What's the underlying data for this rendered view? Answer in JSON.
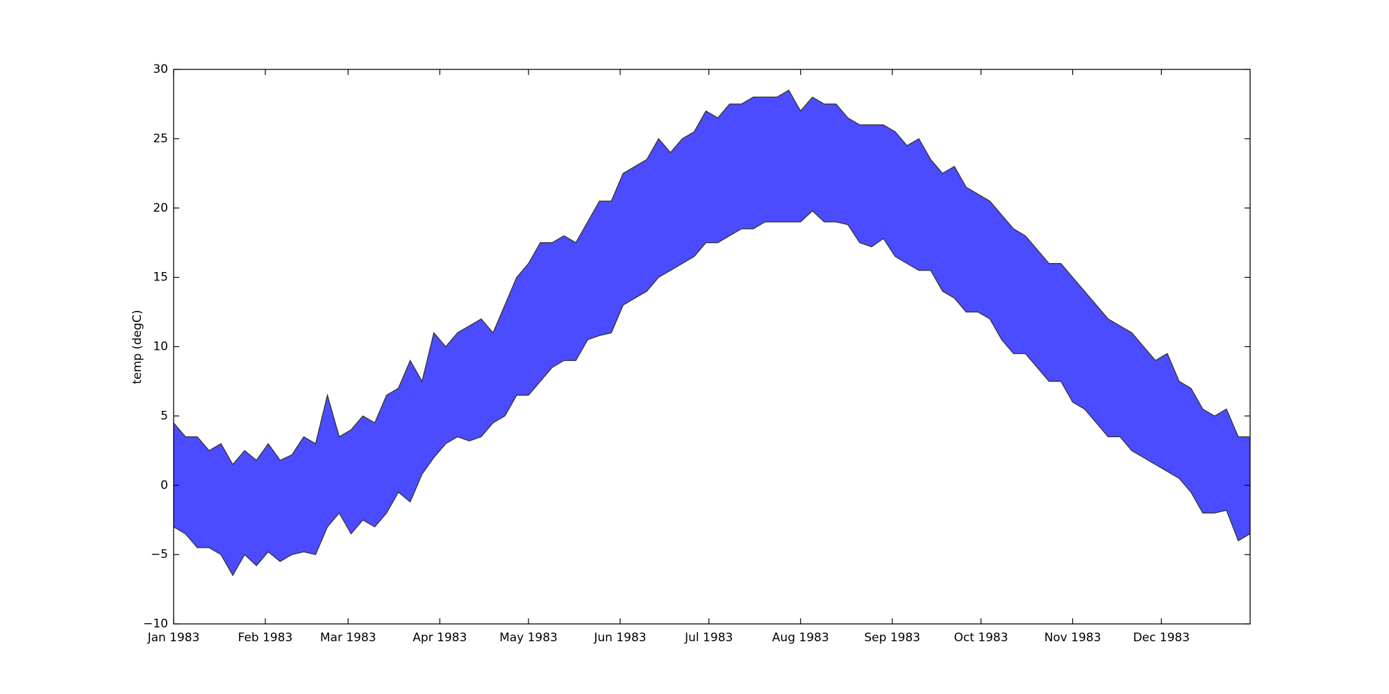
{
  "chart_data": {
    "type": "area",
    "y_label": "temp (degC)",
    "color": "#4b4bff",
    "x": [
      0,
      4,
      8,
      12,
      16,
      20,
      24,
      28,
      32,
      36,
      40,
      44,
      48,
      52,
      56,
      60,
      64,
      68,
      72,
      76,
      80,
      84,
      88,
      92,
      96,
      100,
      104,
      108,
      112,
      116,
      120,
      124,
      128,
      132,
      136,
      140,
      144,
      148,
      152,
      156,
      160,
      164,
      168,
      172,
      176,
      180,
      184,
      188,
      192,
      196,
      200,
      204,
      208,
      212,
      216,
      220,
      224,
      228,
      232,
      236,
      240,
      244,
      248,
      252,
      256,
      260,
      264,
      268,
      272,
      276,
      280,
      284,
      288,
      292,
      296,
      300,
      304,
      308,
      312,
      316,
      320,
      324,
      328,
      332,
      336,
      340,
      344,
      348,
      352,
      356,
      360,
      364
    ],
    "series": [
      {
        "values": [
          4.5,
          3.5,
          3.5,
          2.5,
          3.0,
          1.5,
          2.5,
          1.8,
          3.0,
          1.8,
          2.2,
          3.5,
          3.0,
          6.5,
          3.5,
          4.0,
          5.0,
          4.5,
          6.5,
          7.0,
          9.0,
          7.5,
          11.0,
          10.0,
          11.0,
          11.5,
          12.0,
          11.0,
          13.0,
          15.0,
          16.0,
          17.5,
          17.5,
          18.0,
          17.5,
          19.0,
          20.5,
          20.5,
          22.5,
          23.0,
          23.5,
          25.0,
          24.0,
          25.0,
          25.5,
          27.0,
          26.5,
          27.5,
          27.5,
          28.0,
          28.0,
          28.0,
          28.5,
          27.0,
          28.0,
          27.5,
          27.5,
          26.5,
          26.0,
          26.0,
          26.0,
          25.5,
          24.5,
          25.0,
          23.5,
          22.5,
          23.0,
          21.5,
          21.0,
          20.5,
          19.5,
          18.5,
          18.0,
          17.0,
          16.0,
          16.0,
          15.0,
          14.0,
          13.0,
          12.0,
          11.5,
          11.0,
          10.0,
          9.0,
          9.5,
          7.5,
          7.0,
          5.5,
          5.0,
          5.5,
          3.5,
          3.5
        ]
      },
      {
        "values": [
          -3.0,
          -3.5,
          -4.5,
          -4.5,
          -5.0,
          -6.5,
          -5.0,
          -5.8,
          -4.8,
          -5.5,
          -5.0,
          -4.8,
          -5.0,
          -3.0,
          -2.0,
          -3.5,
          -2.5,
          -3.0,
          -2.0,
          -0.5,
          -1.2,
          0.8,
          2.0,
          3.0,
          3.5,
          3.2,
          3.5,
          4.5,
          5.0,
          6.5,
          6.5,
          7.5,
          8.5,
          9.0,
          9.0,
          10.5,
          10.8,
          11.0,
          13.0,
          13.5,
          14.0,
          15.0,
          15.5,
          16.0,
          16.5,
          17.5,
          17.5,
          18.0,
          18.5,
          18.5,
          19.0,
          19.0,
          19.0,
          19.0,
          19.8,
          19.0,
          19.0,
          18.8,
          17.5,
          17.2,
          17.8,
          16.5,
          16.0,
          15.5,
          15.5,
          14.0,
          13.5,
          12.5,
          12.5,
          12.0,
          10.5,
          9.5,
          9.5,
          8.5,
          7.5,
          7.5,
          6.0,
          5.5,
          4.5,
          3.5,
          3.5,
          2.5,
          2.0,
          1.5,
          1.0,
          0.5,
          -0.5,
          -2.0,
          -2.0,
          -1.8,
          -4.0,
          -3.5
        ]
      }
    ],
    "xlim": [
      0,
      364
    ],
    "xticks": [
      {
        "value": 0,
        "label": "Jan 1983"
      },
      {
        "value": 31,
        "label": "Feb 1983"
      },
      {
        "value": 59,
        "label": "Mar 1983"
      },
      {
        "value": 90,
        "label": "Apr 1983"
      },
      {
        "value": 120,
        "label": "May 1983"
      },
      {
        "value": 151,
        "label": "Jun 1983"
      },
      {
        "value": 181,
        "label": "Jul 1983"
      },
      {
        "value": 212,
        "label": "Aug 1983"
      },
      {
        "value": 243,
        "label": "Sep 1983"
      },
      {
        "value": 273,
        "label": "Oct 1983"
      },
      {
        "value": 304,
        "label": "Nov 1983"
      },
      {
        "value": 334,
        "label": "Dec 1983"
      }
    ],
    "ylim": [
      -10,
      30
    ],
    "yticks": [
      {
        "value": -10,
        "label": "−10"
      },
      {
        "value": -5,
        "label": "−5"
      },
      0,
      5,
      10,
      15,
      20,
      25,
      30
    ]
  }
}
